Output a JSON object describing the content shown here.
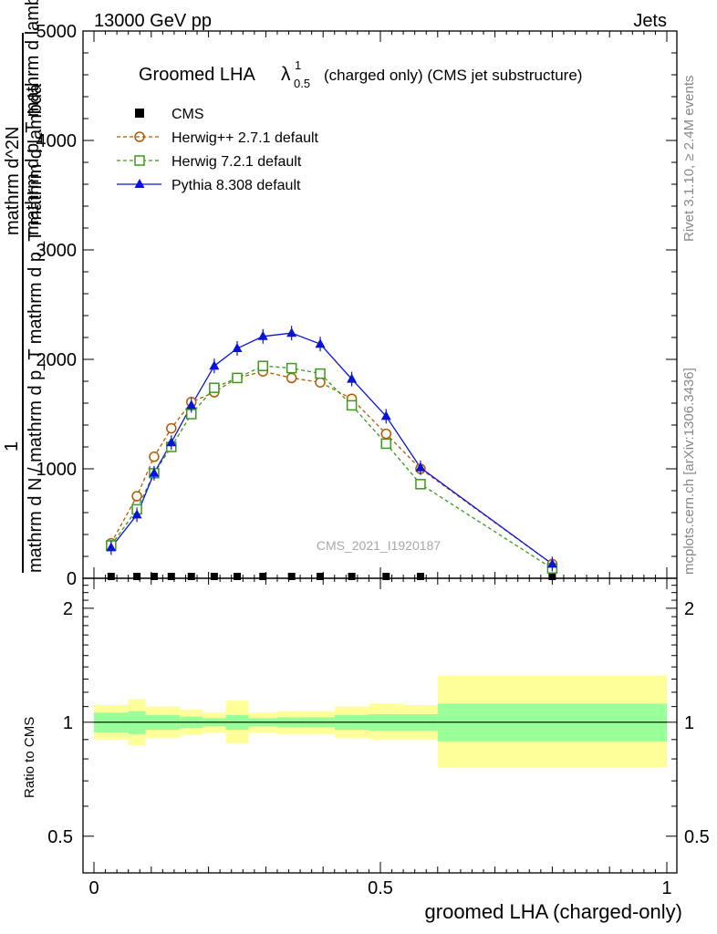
{
  "header": {
    "left": "13000 GeV pp",
    "right": "Jets"
  },
  "title": {
    "prefix": "Groomed LHA",
    "lambda": "λ",
    "lambda_sup": "1",
    "lambda_sub": "0.5",
    "suffix": "(charged only) (CMS jet substructure)"
  },
  "side_labels": {
    "rivet": "Rivet 3.1.10, ≥ 2.4M events",
    "mcplots": "mcplots.cern.ch [arXiv:1306.3436]"
  },
  "watermark": "CMS_2021_I1920187",
  "ylabel_main": {
    "numerator_top": "1",
    "numerator": "mathrm d N",
    "denominator": "mathrm d N / mathrm d p_T mathrm d p_T mathrm d lambda",
    "overlap1": "mathrm d^2N",
    "overlap2": "mathrm d p_T mathrm d lambda"
  },
  "ylabel_ratio": "Ratio to CMS",
  "xlabel": "groomed LHA (charged-only)",
  "colors": {
    "herwigpp": "#b35900",
    "herwig7": "#3a9a1a",
    "pythia": "#0a14d6",
    "band_inner": "#99ff99",
    "band_outer": "#ffff99"
  },
  "legend": [
    {
      "id": "cms",
      "label": "CMS"
    },
    {
      "id": "herwigpp",
      "label": "Herwig++ 2.7.1 default"
    },
    {
      "id": "herwig7",
      "label": "Herwig 7.2.1 default"
    },
    {
      "id": "pythia",
      "label": "Pythia 8.308 default"
    }
  ],
  "chart_data": {
    "type": "line",
    "x_ticks": [
      "0",
      "0.5",
      "1"
    ],
    "y_ticks_main": [
      "0",
      "1000",
      "2000",
      "3000",
      "4000",
      "5000"
    ],
    "y_ticks_ratio": [
      "0.5",
      "1",
      "2"
    ],
    "xlim": [
      0,
      1
    ],
    "ylim_main": [
      0,
      5000
    ],
    "ylim_ratio": [
      0.4,
      2.4
    ],
    "ratio_log_scale": true,
    "x": [
      0.03,
      0.075,
      0.105,
      0.135,
      0.17,
      0.21,
      0.25,
      0.295,
      0.345,
      0.395,
      0.45,
      0.51,
      0.57,
      0.8
    ],
    "series": [
      {
        "name": "CMS",
        "values": [
          0,
          0,
          0,
          0,
          0,
          0,
          0,
          0,
          0,
          0,
          0,
          0,
          0,
          0
        ]
      },
      {
        "name": "Herwig++ 2.7.1 default",
        "values": [
          320,
          750,
          1110,
          1370,
          1610,
          1700,
          1830,
          1890,
          1830,
          1790,
          1640,
          1320,
          1000,
          130
        ]
      },
      {
        "name": "Herwig 7.2.1 default",
        "values": [
          300,
          630,
          960,
          1200,
          1500,
          1740,
          1830,
          1940,
          1920,
          1870,
          1580,
          1230,
          860,
          90
        ]
      },
      {
        "name": "Pythia 8.308 default",
        "values": [
          280,
          580,
          960,
          1240,
          1580,
          1940,
          2100,
          2210,
          2240,
          2140,
          1820,
          1480,
          1010,
          130
        ]
      }
    ],
    "ratio_bands": [
      {
        "x_lo": 0.0,
        "x_hi": 0.06,
        "inner": [
          0.94,
          1.06
        ],
        "outer": [
          0.9,
          1.11
        ]
      },
      {
        "x_lo": 0.06,
        "x_hi": 0.09,
        "inner": [
          0.93,
          1.07
        ],
        "outer": [
          0.87,
          1.15
        ]
      },
      {
        "x_lo": 0.09,
        "x_hi": 0.12,
        "inner": [
          0.955,
          1.045
        ],
        "outer": [
          0.91,
          1.1
        ]
      },
      {
        "x_lo": 0.12,
        "x_hi": 0.15,
        "inner": [
          0.955,
          1.045
        ],
        "outer": [
          0.91,
          1.1
        ]
      },
      {
        "x_lo": 0.15,
        "x_hi": 0.19,
        "inner": [
          0.965,
          1.035
        ],
        "outer": [
          0.925,
          1.08
        ]
      },
      {
        "x_lo": 0.19,
        "x_hi": 0.23,
        "inner": [
          0.975,
          1.025
        ],
        "outer": [
          0.94,
          1.06
        ]
      },
      {
        "x_lo": 0.23,
        "x_hi": 0.27,
        "inner": [
          0.955,
          1.045
        ],
        "outer": [
          0.88,
          1.14
        ]
      },
      {
        "x_lo": 0.27,
        "x_hi": 0.32,
        "inner": [
          0.975,
          1.025
        ],
        "outer": [
          0.94,
          1.06
        ]
      },
      {
        "x_lo": 0.32,
        "x_hi": 0.37,
        "inner": [
          0.97,
          1.03
        ],
        "outer": [
          0.93,
          1.07
        ]
      },
      {
        "x_lo": 0.37,
        "x_hi": 0.42,
        "inner": [
          0.97,
          1.03
        ],
        "outer": [
          0.93,
          1.07
        ]
      },
      {
        "x_lo": 0.42,
        "x_hi": 0.48,
        "inner": [
          0.955,
          1.045
        ],
        "outer": [
          0.91,
          1.1
        ]
      },
      {
        "x_lo": 0.48,
        "x_hi": 0.54,
        "inner": [
          0.95,
          1.05
        ],
        "outer": [
          0.9,
          1.12
        ]
      },
      {
        "x_lo": 0.54,
        "x_hi": 0.6,
        "inner": [
          0.95,
          1.05
        ],
        "outer": [
          0.9,
          1.11
        ]
      },
      {
        "x_lo": 0.6,
        "x_hi": 1.0,
        "inner": [
          0.89,
          1.12
        ],
        "outer": [
          0.76,
          1.33
        ]
      }
    ]
  }
}
